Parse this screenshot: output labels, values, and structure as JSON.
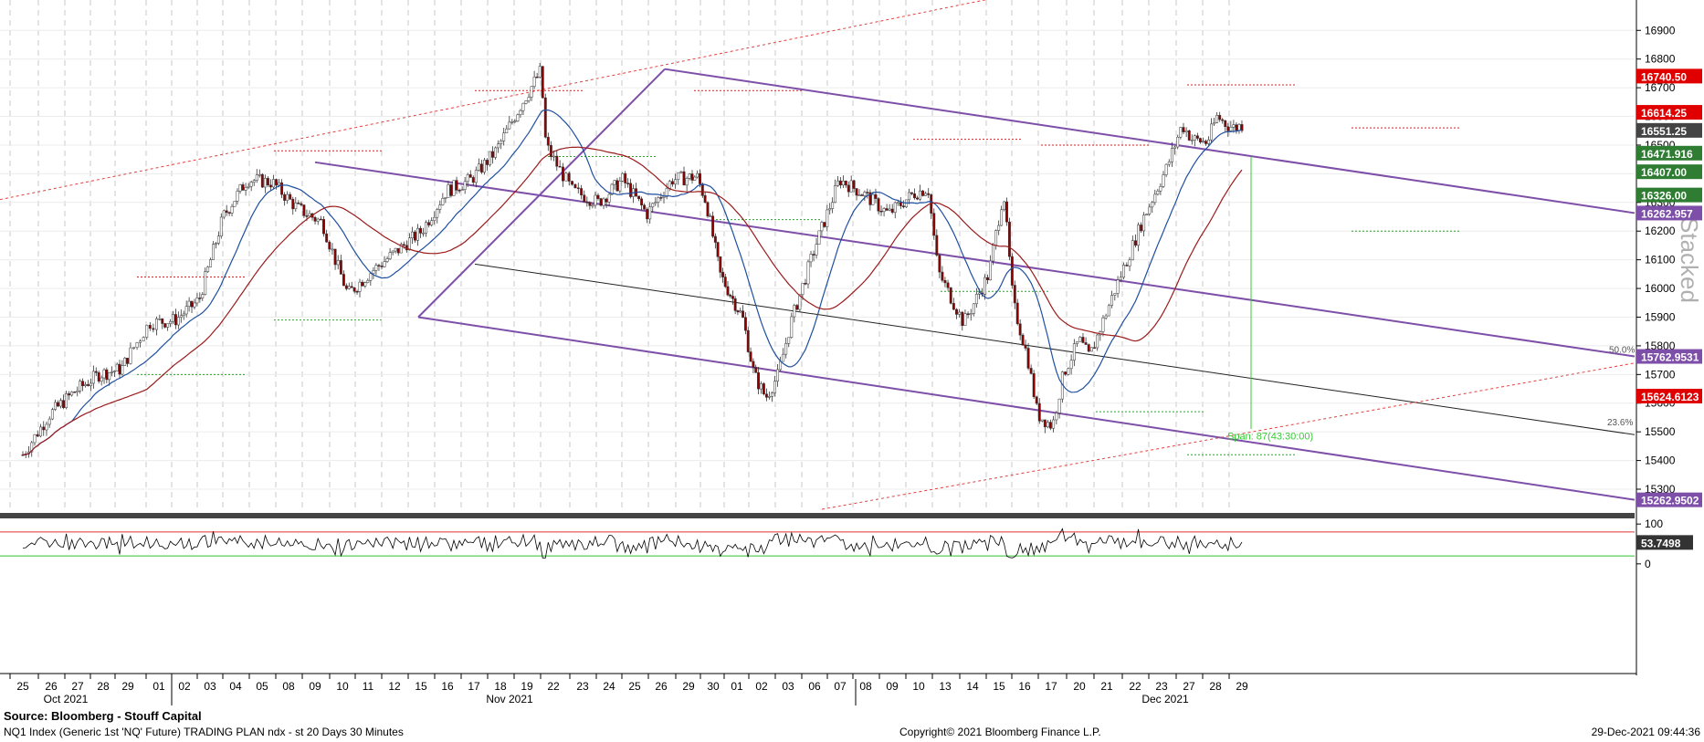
{
  "chart_data": {
    "type": "candlestick",
    "instrument": "NQ1 Index",
    "x_axis": {
      "day_labels": [
        "25",
        "26",
        "27",
        "28",
        "29",
        "01",
        "02",
        "03",
        "04",
        "05",
        "08",
        "09",
        "10",
        "11",
        "12",
        "15",
        "16",
        "17",
        "18",
        "19",
        "22",
        "23",
        "24",
        "25",
        "26",
        "29",
        "30",
        "01",
        "02",
        "03",
        "06",
        "07",
        "08",
        "09",
        "10",
        "13",
        "14",
        "15",
        "16",
        "17",
        "20",
        "21",
        "22",
        "23",
        "27",
        "28",
        "29"
      ],
      "month_labels": [
        "Oct 2021",
        "Nov 2021",
        "Dec 2021"
      ]
    },
    "y_axis": {
      "ticks": [
        16900,
        16800,
        16700,
        16600,
        16500,
        16400,
        16300,
        16200,
        16100,
        16000,
        15900,
        15800,
        15700,
        15600,
        15500,
        15400,
        15300
      ],
      "range": [
        15230,
        16990
      ]
    },
    "price_labels": [
      {
        "text": "16740.50",
        "value": 16740.5,
        "color": "#e00000"
      },
      {
        "text": "16614.25",
        "value": 16614.25,
        "color": "#e00000"
      },
      {
        "text": "16551.25",
        "value": 16551.25,
        "color": "#444444"
      },
      {
        "text": "16471.916",
        "value": 16471.916,
        "color": "#2e7d32"
      },
      {
        "text": "16407.00",
        "value": 16407.0,
        "color": "#2e7d32"
      },
      {
        "text": "16326.00",
        "value": 16326.0,
        "color": "#2e7d32"
      },
      {
        "text": "16262.957",
        "value": 16262.957,
        "color": "#7e4fa8"
      },
      {
        "text": "15762.9531",
        "value": 15762.9531,
        "color": "#7e4fa8"
      },
      {
        "text": "15624.6123",
        "value": 15624.6123,
        "color": "#e00000"
      },
      {
        "text": "15262.9502",
        "value": 15262.9502,
        "color": "#7e4fa8"
      }
    ],
    "annotations": [
      "50.0%",
      "23.6%",
      "Span: 87(43:30:00)",
      "Stacked"
    ],
    "oscillator": {
      "ticks": [
        100,
        0
      ],
      "range": [
        -5,
        105
      ],
      "last_value_label": "53.7498",
      "upper_line": 80,
      "lower_line": 20
    }
  },
  "footer": {
    "source": "Source: Bloomberg - Stouff Capital",
    "description": "NQ1 Index (Generic 1st 'NQ' Future) TRADING PLAN ndx - st 20 Days 30 Minutes",
    "copyright": "Copyright© 2021 Bloomberg Finance L.P.",
    "timestamp": "29-Dec-2021 09:44:36"
  },
  "colors": {
    "candle": "#8b0000",
    "channel": "#7e4fa8",
    "ma_fast": "#1f4fa0",
    "ma_slow": "#9b1b1b",
    "oscillator": "#000000"
  }
}
